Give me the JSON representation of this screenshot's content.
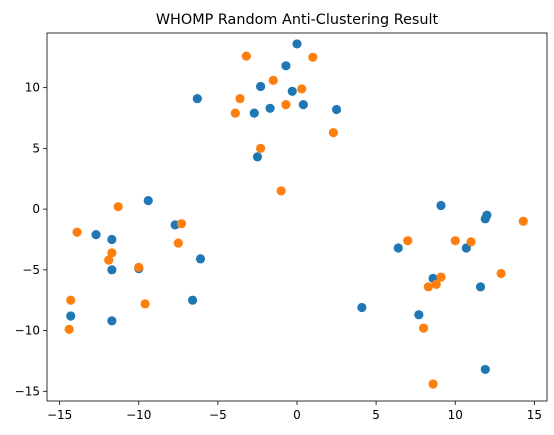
{
  "chart_data": {
    "type": "scatter",
    "title": "WHOMP Random Anti-Clustering Result",
    "xlabel": "",
    "ylabel": "",
    "xlim": [
      -15.8,
      15.8
    ],
    "ylim": [
      -15.8,
      14.5
    ],
    "xticks": [
      -15,
      -10,
      -5,
      0,
      5,
      10,
      15
    ],
    "yticks": [
      -15,
      -10,
      -5,
      0,
      5,
      10
    ],
    "grid": false,
    "legend": "none",
    "series": [
      {
        "color": "#1f77b4",
        "points": [
          [
            -14.3,
            -8.8
          ],
          [
            -12.7,
            -2.1
          ],
          [
            -11.7,
            -2.5
          ],
          [
            -11.7,
            -5.0
          ],
          [
            -11.7,
            -9.2
          ],
          [
            -10.0,
            -4.9
          ],
          [
            -9.4,
            0.7
          ],
          [
            -7.7,
            -1.3
          ],
          [
            -6.3,
            9.1
          ],
          [
            -6.1,
            -4.1
          ],
          [
            -6.6,
            -7.5
          ],
          [
            -2.7,
            7.9
          ],
          [
            -2.5,
            4.3
          ],
          [
            -2.3,
            10.1
          ],
          [
            -1.7,
            8.3
          ],
          [
            -0.7,
            11.8
          ],
          [
            -0.3,
            9.7
          ],
          [
            0.0,
            13.6
          ],
          [
            0.4,
            8.6
          ],
          [
            2.5,
            8.2
          ],
          [
            4.1,
            -8.1
          ],
          [
            6.4,
            -3.2
          ],
          [
            7.7,
            -8.7
          ],
          [
            8.6,
            -5.7
          ],
          [
            9.1,
            0.3
          ],
          [
            10.7,
            -3.2
          ],
          [
            11.6,
            -6.4
          ],
          [
            11.9,
            -0.8
          ],
          [
            12.0,
            -0.5
          ],
          [
            11.9,
            -13.2
          ]
        ]
      },
      {
        "color": "#ff7f0e",
        "points": [
          [
            -14.4,
            -9.9
          ],
          [
            -14.3,
            -7.5
          ],
          [
            -13.9,
            -1.9
          ],
          [
            -11.9,
            -4.2
          ],
          [
            -11.7,
            -3.6
          ],
          [
            -11.3,
            0.2
          ],
          [
            -10.0,
            -4.8
          ],
          [
            -9.6,
            -7.8
          ],
          [
            -7.5,
            -2.8
          ],
          [
            -7.3,
            -1.2
          ],
          [
            -3.9,
            7.9
          ],
          [
            -3.6,
            9.1
          ],
          [
            -3.2,
            12.6
          ],
          [
            -2.3,
            5.0
          ],
          [
            -1.5,
            10.6
          ],
          [
            -1.0,
            1.5
          ],
          [
            -0.7,
            8.6
          ],
          [
            0.3,
            9.9
          ],
          [
            1.0,
            12.5
          ],
          [
            2.3,
            6.3
          ],
          [
            7.0,
            -2.6
          ],
          [
            8.0,
            -9.8
          ],
          [
            8.3,
            -6.4
          ],
          [
            8.8,
            -6.2
          ],
          [
            9.1,
            -5.6
          ],
          [
            10.0,
            -2.6
          ],
          [
            11.0,
            -2.7
          ],
          [
            12.9,
            -5.3
          ],
          [
            14.3,
            -1.0
          ],
          [
            8.6,
            -14.4
          ]
        ]
      }
    ]
  }
}
